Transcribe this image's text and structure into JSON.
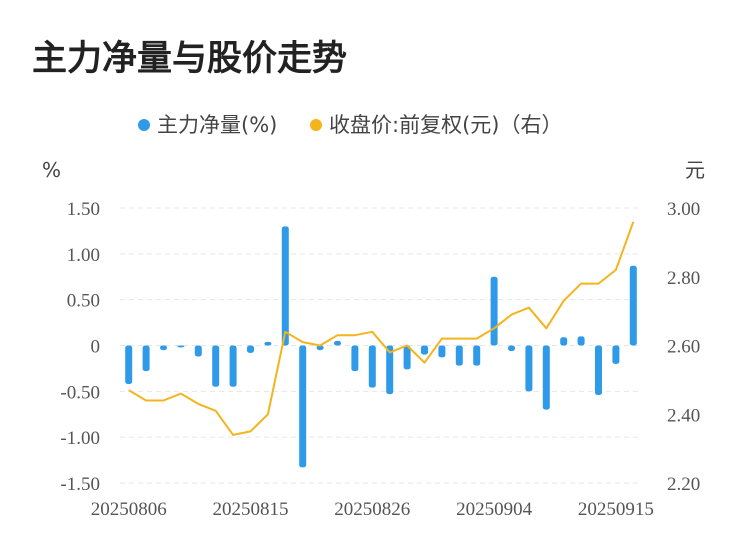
{
  "title": "主力净量与股价走势",
  "chart_data": {
    "type": "bar+line",
    "legend": [
      {
        "name": "主力净量(%)",
        "color": "#2f9be8"
      },
      {
        "name": "收盘价:前复权(元)（右）",
        "color": "#f3b41c"
      }
    ],
    "y_left": {
      "unit": "%",
      "ticks": [
        "1.50",
        "1.00",
        "0.50",
        "0",
        "-0.50",
        "-1.00",
        "-1.50"
      ],
      "min": -1.5,
      "max": 1.5
    },
    "y_right": {
      "unit": "元",
      "ticks": [
        "3.00",
        "2.80",
        "2.60",
        "2.40",
        "2.20"
      ],
      "min": 2.2,
      "max": 3.0
    },
    "x_tick_labels": [
      {
        "index": 0,
        "label": "20250806"
      },
      {
        "index": 7,
        "label": "20250815"
      },
      {
        "index": 14,
        "label": "20250826"
      },
      {
        "index": 21,
        "label": "20250904"
      },
      {
        "index": 28,
        "label": "20250915"
      }
    ],
    "series": [
      {
        "name": "主力净量(%)",
        "type": "bar",
        "values": [
          -0.42,
          -0.28,
          -0.05,
          -0.02,
          -0.12,
          -0.45,
          -0.45,
          -0.08,
          0.04,
          1.3,
          -1.33,
          -0.05,
          0.05,
          -0.28,
          -0.46,
          -0.53,
          -0.26,
          -0.1,
          -0.13,
          -0.22,
          -0.22,
          0.75,
          -0.06,
          -0.5,
          -0.7,
          0.09,
          0.1,
          -0.54,
          -0.2,
          0.87
        ]
      },
      {
        "name": "收盘价:前复权(元)（右）",
        "type": "line",
        "values": [
          2.47,
          2.44,
          2.44,
          2.46,
          2.43,
          2.41,
          2.34,
          2.35,
          2.4,
          2.64,
          2.61,
          2.6,
          2.63,
          2.63,
          2.64,
          2.58,
          2.6,
          2.55,
          2.62,
          2.62,
          2.62,
          2.65,
          2.69,
          2.71,
          2.65,
          2.73,
          2.78,
          2.78,
          2.82,
          2.96
        ]
      }
    ],
    "grid": true
  }
}
